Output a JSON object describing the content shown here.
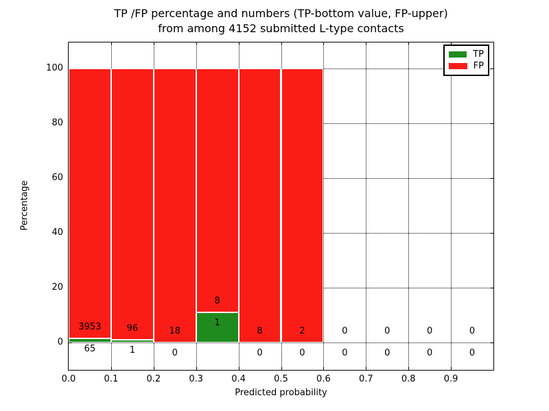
{
  "figure": {
    "title_line1": "TP /FP percentage and numbers (TP-bottom value, FP-upper)",
    "title_line2": "from among 4152 submitted L-type contacts"
  },
  "chart_data": {
    "type": "bar",
    "stacked": true,
    "title": "TP /FP percentage and numbers (TP-bottom value, FP-upper) from among 4152 submitted L-type contacts",
    "xlabel": "Predicted probability",
    "ylabel": "Percentage",
    "xlim": [
      0.0,
      1.0
    ],
    "ylim": [
      -10,
      109.5
    ],
    "x_tick_labels": [
      "0.0",
      "0.1",
      "0.2",
      "0.3",
      "0.4",
      "0.5",
      "0.6",
      "0.7",
      "0.8",
      "0.9"
    ],
    "x_tick_values": [
      0.0,
      0.1,
      0.2,
      0.3,
      0.4,
      0.5,
      0.6,
      0.7,
      0.8,
      0.9
    ],
    "y_tick_values": [
      0,
      20,
      40,
      60,
      80,
      100
    ],
    "grid": "dotted black on both axes",
    "legend_position": "upper right",
    "total_contacts": 4152,
    "bin_width": 0.1,
    "series": [
      {
        "name": "TP",
        "color": "#1f8b1f",
        "position": "bottom"
      },
      {
        "name": "FP",
        "color": "#fa1d17",
        "position": "upper"
      }
    ],
    "bins": [
      {
        "x_range": [
          0.0,
          0.1
        ],
        "tp": 65,
        "fp": 3953
      },
      {
        "x_range": [
          0.1,
          0.2
        ],
        "tp": 1,
        "fp": 96
      },
      {
        "x_range": [
          0.2,
          0.3
        ],
        "tp": 0,
        "fp": 18
      },
      {
        "x_range": [
          0.3,
          0.4
        ],
        "tp": 1,
        "fp": 8
      },
      {
        "x_range": [
          0.4,
          0.5
        ],
        "tp": 0,
        "fp": 8
      },
      {
        "x_range": [
          0.5,
          0.6
        ],
        "tp": 0,
        "fp": 2
      },
      {
        "x_range": [
          0.6,
          0.7
        ],
        "tp": 0,
        "fp": 0
      },
      {
        "x_range": [
          0.7,
          0.8
        ],
        "tp": 0,
        "fp": 0
      },
      {
        "x_range": [
          0.8,
          0.9
        ],
        "tp": 0,
        "fp": 0
      },
      {
        "x_range": [
          0.9,
          1.0
        ],
        "tp": 0,
        "fp": 0
      }
    ],
    "percent_rule": "bar percentages computed as count/(tp+fp)*100; non-empty bars stack to 100%"
  }
}
